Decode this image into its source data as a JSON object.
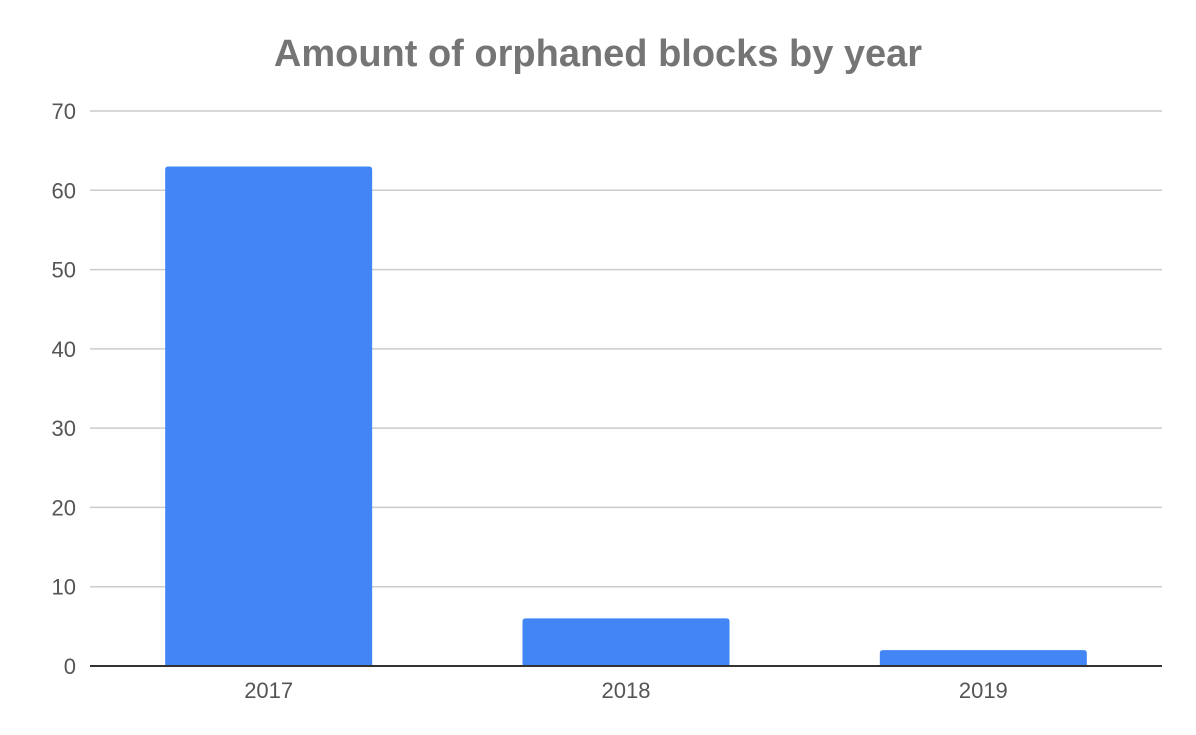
{
  "chart_data": {
    "type": "bar",
    "title": "Amount of orphaned blocks by year",
    "xlabel": "",
    "ylabel": "",
    "categories": [
      "2017",
      "2018",
      "2019"
    ],
    "values": [
      63,
      6,
      2
    ],
    "ylim": [
      0,
      70
    ],
    "yticks": [
      0,
      10,
      20,
      30,
      40,
      50,
      60,
      70
    ],
    "grid": true,
    "legend": "none"
  },
  "colors": {
    "bar": "#4285f4",
    "grid": "#cccccc",
    "axis": "#333333",
    "title": "#757575",
    "tick_text": "#555555"
  }
}
